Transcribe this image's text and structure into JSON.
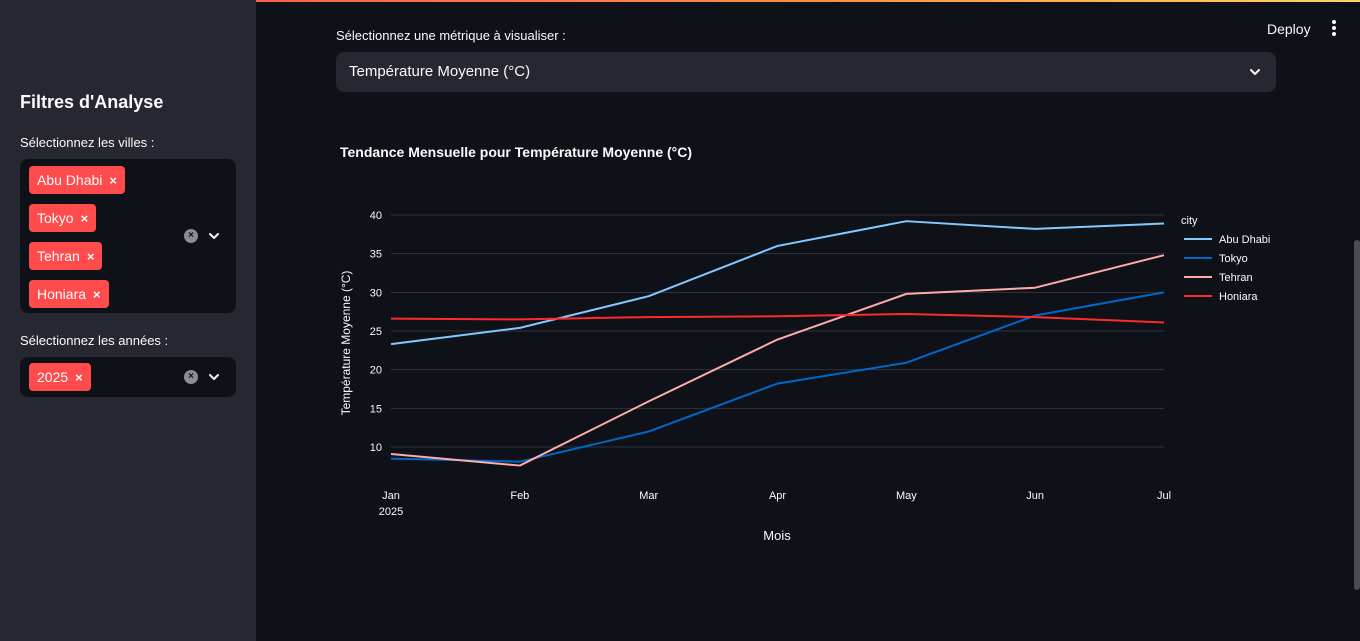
{
  "sidebar": {
    "title": "Filtres d'Analyse",
    "cities_label": "Sélectionnez les villes :",
    "cities": [
      "Abu Dhabi",
      "Tokyo",
      "Tehran",
      "Honiara"
    ],
    "years_label": "Sélectionnez les années :",
    "years": [
      "2025"
    ],
    "remove_glyph": "×"
  },
  "header": {
    "deploy_label": "Deploy",
    "menu_icon": "kebab-vertical-icon"
  },
  "main": {
    "metric_label": "Sélectionnez une métrique à visualiser :",
    "metric_value": "Température Moyenne (°C)"
  },
  "colors": {
    "accent": "#ff4b4b",
    "sidebar_bg": "#262730",
    "page_bg": "#0e1117"
  },
  "chart_data": {
    "type": "line",
    "title": "Tendance Mensuelle pour Température Moyenne (°C)",
    "xlabel": "Mois",
    "ylabel": "Température Moyenne (°C)",
    "categories": [
      "Jan",
      "Feb",
      "Mar",
      "Apr",
      "May",
      "Jun",
      "Jul"
    ],
    "x_year_label": "2025",
    "ylim": [
      5,
      42
    ],
    "yticks": [
      10,
      15,
      20,
      25,
      30,
      35,
      40
    ],
    "legend_title": "city",
    "legend_position": "top-right",
    "grid": true,
    "series": [
      {
        "name": "Abu Dhabi",
        "color": "#83c9ff",
        "values": [
          23.3,
          25.4,
          29.5,
          36.0,
          39.2,
          38.2,
          38.9
        ]
      },
      {
        "name": "Tokyo",
        "color": "#0068c9",
        "values": [
          8.5,
          8.1,
          12.0,
          18.2,
          20.9,
          27.0,
          30.0
        ]
      },
      {
        "name": "Tehran",
        "color": "#ffabab",
        "values": [
          9.1,
          7.6,
          15.9,
          23.9,
          29.8,
          30.6,
          34.8
        ]
      },
      {
        "name": "Honiara",
        "color": "#ff2b2b",
        "values": [
          26.6,
          26.5,
          26.8,
          26.9,
          27.2,
          26.8,
          26.1
        ]
      }
    ]
  }
}
